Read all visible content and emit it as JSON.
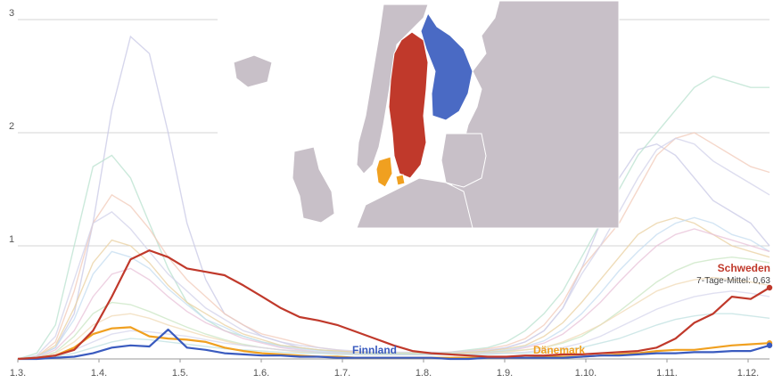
{
  "chart_data": {
    "type": "line",
    "title": "",
    "xlabel": "",
    "ylabel": "",
    "ylim": [
      0,
      3
    ],
    "y_ticks": [
      "1",
      "2",
      "3"
    ],
    "x_ticks": [
      "1.3.",
      "1.4.",
      "1.5.",
      "1.6.",
      "1.7.",
      "1.8.",
      "1.9.",
      "1.10.",
      "1.11.",
      "1.12."
    ],
    "grid": true,
    "series": [
      {
        "name": "Schweden",
        "sub": "7-Tage-Mittel: 0,63",
        "color": "#c0392b",
        "values": [
          0,
          0.01,
          0.03,
          0.08,
          0.25,
          0.55,
          0.88,
          0.96,
          0.9,
          0.8,
          0.77,
          0.74,
          0.65,
          0.55,
          0.45,
          0.37,
          0.34,
          0.3,
          0.24,
          0.18,
          0.12,
          0.07,
          0.05,
          0.04,
          0.03,
          0.02,
          0.02,
          0.03,
          0.03,
          0.04,
          0.04,
          0.05,
          0.06,
          0.07,
          0.1,
          0.18,
          0.32,
          0.4,
          0.55,
          0.53,
          0.63
        ]
      },
      {
        "name": "Finnland",
        "sub": "",
        "color": "#3a5bbf",
        "values": [
          0,
          0.0,
          0.01,
          0.02,
          0.05,
          0.1,
          0.12,
          0.11,
          0.26,
          0.1,
          0.08,
          0.05,
          0.04,
          0.03,
          0.03,
          0.02,
          0.02,
          0.01,
          0.01,
          0.01,
          0.01,
          0.01,
          0.01,
          0.0,
          0.0,
          0.01,
          0.01,
          0.01,
          0.01,
          0.01,
          0.02,
          0.03,
          0.03,
          0.04,
          0.05,
          0.05,
          0.06,
          0.06,
          0.07,
          0.07,
          0.12
        ]
      },
      {
        "name": "Dänemark",
        "sub": "",
        "color": "#f0a020",
        "values": [
          0,
          0.01,
          0.03,
          0.1,
          0.22,
          0.27,
          0.28,
          0.2,
          0.18,
          0.17,
          0.15,
          0.1,
          0.07,
          0.05,
          0.04,
          0.03,
          0.02,
          0.02,
          0.01,
          0.01,
          0.01,
          0.01,
          0.01,
          0.01,
          0.01,
          0.01,
          0.01,
          0.01,
          0.02,
          0.02,
          0.02,
          0.03,
          0.04,
          0.05,
          0.07,
          0.08,
          0.08,
          0.1,
          0.12,
          0.13,
          0.14
        ]
      }
    ],
    "background_series": [
      {
        "color": "#c8c8e6",
        "values": [
          0,
          0.02,
          0.1,
          0.4,
          1.2,
          2.2,
          2.85,
          2.7,
          2.0,
          1.2,
          0.7,
          0.4,
          0.3,
          0.2,
          0.15,
          0.1,
          0.08,
          0.06,
          0.05,
          0.04,
          0.04,
          0.04,
          0.04,
          0.05,
          0.06,
          0.07,
          0.1,
          0.15,
          0.25,
          0.45,
          0.8,
          1.2,
          1.6,
          1.85,
          1.9,
          1.8,
          1.6,
          1.4,
          1.3,
          1.2,
          1.0
        ]
      },
      {
        "color": "#b9e2cf",
        "values": [
          0,
          0.05,
          0.3,
          1.0,
          1.7,
          1.8,
          1.6,
          1.2,
          0.8,
          0.5,
          0.35,
          0.25,
          0.2,
          0.15,
          0.12,
          0.1,
          0.08,
          0.07,
          0.06,
          0.05,
          0.05,
          0.05,
          0.05,
          0.06,
          0.08,
          0.1,
          0.15,
          0.25,
          0.4,
          0.6,
          0.9,
          1.2,
          1.5,
          1.8,
          2.0,
          2.2,
          2.4,
          2.5,
          2.45,
          2.4,
          2.4
        ]
      },
      {
        "color": "#f2c9b8",
        "values": [
          0,
          0.02,
          0.15,
          0.6,
          1.2,
          1.45,
          1.35,
          1.15,
          0.9,
          0.7,
          0.55,
          0.4,
          0.3,
          0.22,
          0.18,
          0.14,
          0.1,
          0.08,
          0.06,
          0.05,
          0.05,
          0.05,
          0.05,
          0.06,
          0.07,
          0.09,
          0.12,
          0.18,
          0.3,
          0.5,
          0.8,
          1.0,
          1.2,
          1.5,
          1.8,
          1.95,
          2.0,
          1.9,
          1.8,
          1.7,
          1.65
        ]
      },
      {
        "color": "#d2d2ea",
        "values": [
          0,
          0.03,
          0.2,
          0.7,
          1.2,
          1.3,
          1.15,
          0.95,
          0.75,
          0.6,
          0.45,
          0.35,
          0.25,
          0.2,
          0.15,
          0.12,
          0.1,
          0.08,
          0.07,
          0.06,
          0.06,
          0.06,
          0.06,
          0.06,
          0.07,
          0.08,
          0.1,
          0.15,
          0.25,
          0.45,
          0.75,
          1.0,
          1.3,
          1.6,
          1.85,
          1.95,
          1.9,
          1.75,
          1.65,
          1.55,
          1.45
        ]
      },
      {
        "color": "#ead0a0",
        "values": [
          0,
          0.02,
          0.12,
          0.45,
          0.85,
          1.05,
          1.0,
          0.85,
          0.65,
          0.5,
          0.4,
          0.3,
          0.22,
          0.17,
          0.12,
          0.1,
          0.08,
          0.07,
          0.06,
          0.05,
          0.05,
          0.05,
          0.05,
          0.05,
          0.06,
          0.07,
          0.09,
          0.12,
          0.2,
          0.32,
          0.5,
          0.7,
          0.9,
          1.1,
          1.2,
          1.25,
          1.2,
          1.1,
          1.0,
          0.95,
          0.9
        ]
      },
      {
        "color": "#c4dcf0",
        "values": [
          0,
          0.02,
          0.1,
          0.35,
          0.75,
          0.95,
          0.9,
          0.8,
          0.62,
          0.48,
          0.35,
          0.28,
          0.2,
          0.15,
          0.11,
          0.09,
          0.07,
          0.06,
          0.05,
          0.04,
          0.04,
          0.04,
          0.04,
          0.05,
          0.05,
          0.06,
          0.08,
          0.11,
          0.16,
          0.26,
          0.4,
          0.58,
          0.78,
          0.95,
          1.1,
          1.2,
          1.25,
          1.2,
          1.1,
          1.05,
          0.95
        ]
      },
      {
        "color": "#e8c2d8",
        "values": [
          0,
          0.01,
          0.08,
          0.25,
          0.55,
          0.75,
          0.8,
          0.7,
          0.55,
          0.42,
          0.32,
          0.25,
          0.18,
          0.14,
          0.1,
          0.08,
          0.06,
          0.05,
          0.04,
          0.04,
          0.04,
          0.04,
          0.04,
          0.04,
          0.05,
          0.06,
          0.07,
          0.1,
          0.14,
          0.22,
          0.35,
          0.5,
          0.68,
          0.85,
          1.0,
          1.1,
          1.15,
          1.1,
          1.05,
          1.0,
          0.95
        ]
      },
      {
        "color": "#c9e6c3",
        "values": [
          0,
          0.01,
          0.06,
          0.2,
          0.4,
          0.5,
          0.48,
          0.42,
          0.35,
          0.28,
          0.22,
          0.17,
          0.13,
          0.1,
          0.08,
          0.07,
          0.06,
          0.05,
          0.05,
          0.05,
          0.05,
          0.05,
          0.05,
          0.05,
          0.05,
          0.06,
          0.07,
          0.08,
          0.1,
          0.14,
          0.2,
          0.3,
          0.42,
          0.55,
          0.68,
          0.78,
          0.85,
          0.88,
          0.9,
          0.88,
          0.85
        ]
      },
      {
        "color": "#f0d9b5",
        "values": [
          0,
          0.01,
          0.05,
          0.15,
          0.3,
          0.38,
          0.4,
          0.36,
          0.3,
          0.25,
          0.2,
          0.16,
          0.12,
          0.1,
          0.08,
          0.06,
          0.05,
          0.05,
          0.04,
          0.04,
          0.04,
          0.04,
          0.04,
          0.04,
          0.05,
          0.05,
          0.06,
          0.08,
          0.1,
          0.15,
          0.22,
          0.3,
          0.4,
          0.5,
          0.6,
          0.66,
          0.7,
          0.72,
          0.7,
          0.68,
          0.65
        ]
      },
      {
        "color": "#d6d6ec",
        "values": [
          0,
          0.01,
          0.03,
          0.08,
          0.15,
          0.22,
          0.25,
          0.24,
          0.22,
          0.2,
          0.17,
          0.14,
          0.12,
          0.1,
          0.08,
          0.07,
          0.06,
          0.05,
          0.05,
          0.04,
          0.04,
          0.04,
          0.04,
          0.04,
          0.04,
          0.05,
          0.05,
          0.06,
          0.08,
          0.1,
          0.14,
          0.2,
          0.28,
          0.36,
          0.44,
          0.5,
          0.55,
          0.58,
          0.6,
          0.58,
          0.55
        ]
      },
      {
        "color": "#bfe0e0",
        "values": [
          0,
          0.01,
          0.02,
          0.05,
          0.1,
          0.15,
          0.18,
          0.17,
          0.15,
          0.13,
          0.11,
          0.09,
          0.08,
          0.07,
          0.06,
          0.05,
          0.05,
          0.04,
          0.04,
          0.04,
          0.04,
          0.04,
          0.04,
          0.04,
          0.04,
          0.04,
          0.05,
          0.05,
          0.06,
          0.08,
          0.1,
          0.14,
          0.18,
          0.24,
          0.3,
          0.35,
          0.38,
          0.4,
          0.4,
          0.38,
          0.36
        ]
      }
    ]
  }
}
